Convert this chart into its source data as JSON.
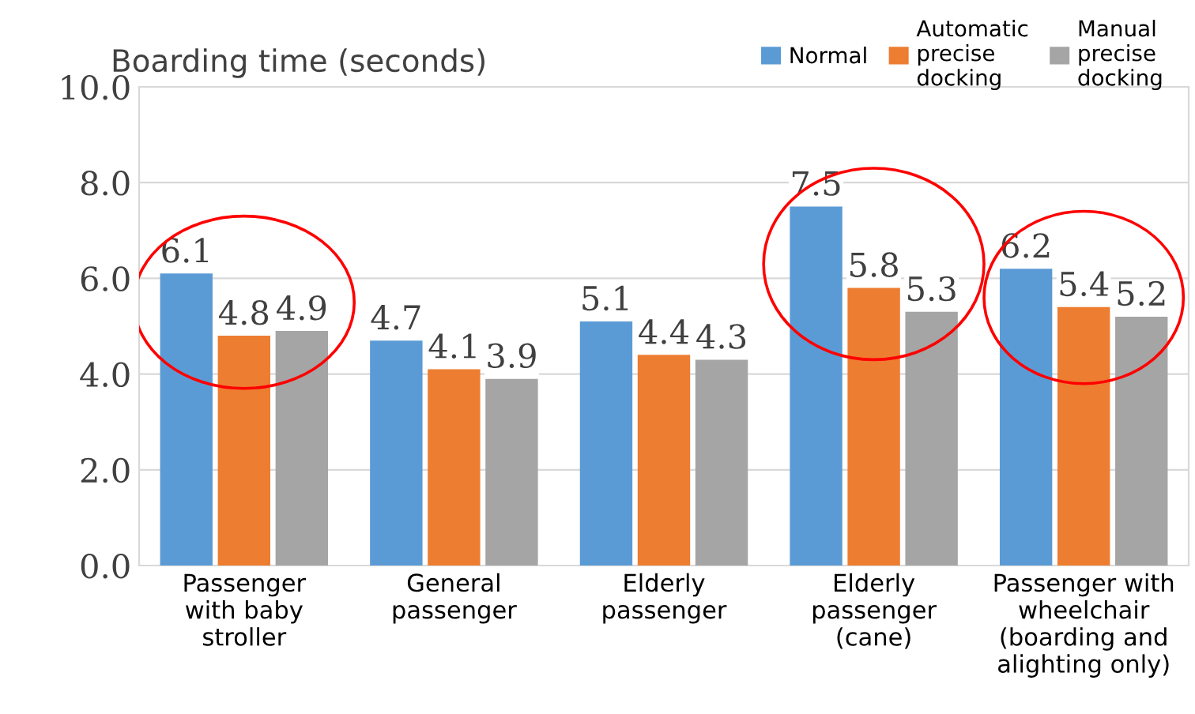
{
  "chart_data": {
    "type": "bar",
    "ylabel": "Boarding time (seconds)",
    "categories": [
      "Passenger\nwith baby\nstroller",
      "General\npassenger",
      "Elderly\npassenger",
      "Elderly\npassenger\n(cane)",
      "Passenger with\nwheelchair\n(boarding and\nalighting only)"
    ],
    "series": [
      {
        "name": "Normal",
        "color": "#5b9bd5",
        "values": [
          6.1,
          4.7,
          5.1,
          7.5,
          6.2
        ]
      },
      {
        "name": "Automatic\nprecise\ndocking",
        "color": "#ed7d31",
        "values": [
          4.8,
          4.1,
          4.4,
          5.8,
          5.4
        ]
      },
      {
        "name": "Manual\nprecise\ndocking",
        "color": "#a5a5a5",
        "values": [
          4.9,
          3.9,
          4.3,
          5.3,
          5.2
        ]
      }
    ],
    "ylim": [
      0,
      10
    ],
    "yticks": [
      {
        "value": 0,
        "label": "0.0"
      },
      {
        "value": 2,
        "label": "2.0"
      },
      {
        "value": 4,
        "label": "4.0"
      },
      {
        "value": 6,
        "label": "6.0"
      },
      {
        "value": 8,
        "label": "8.0"
      },
      {
        "value": 10,
        "label": "10.0"
      }
    ],
    "grid": "y",
    "legend": "top right",
    "data_labels": true
  }
}
